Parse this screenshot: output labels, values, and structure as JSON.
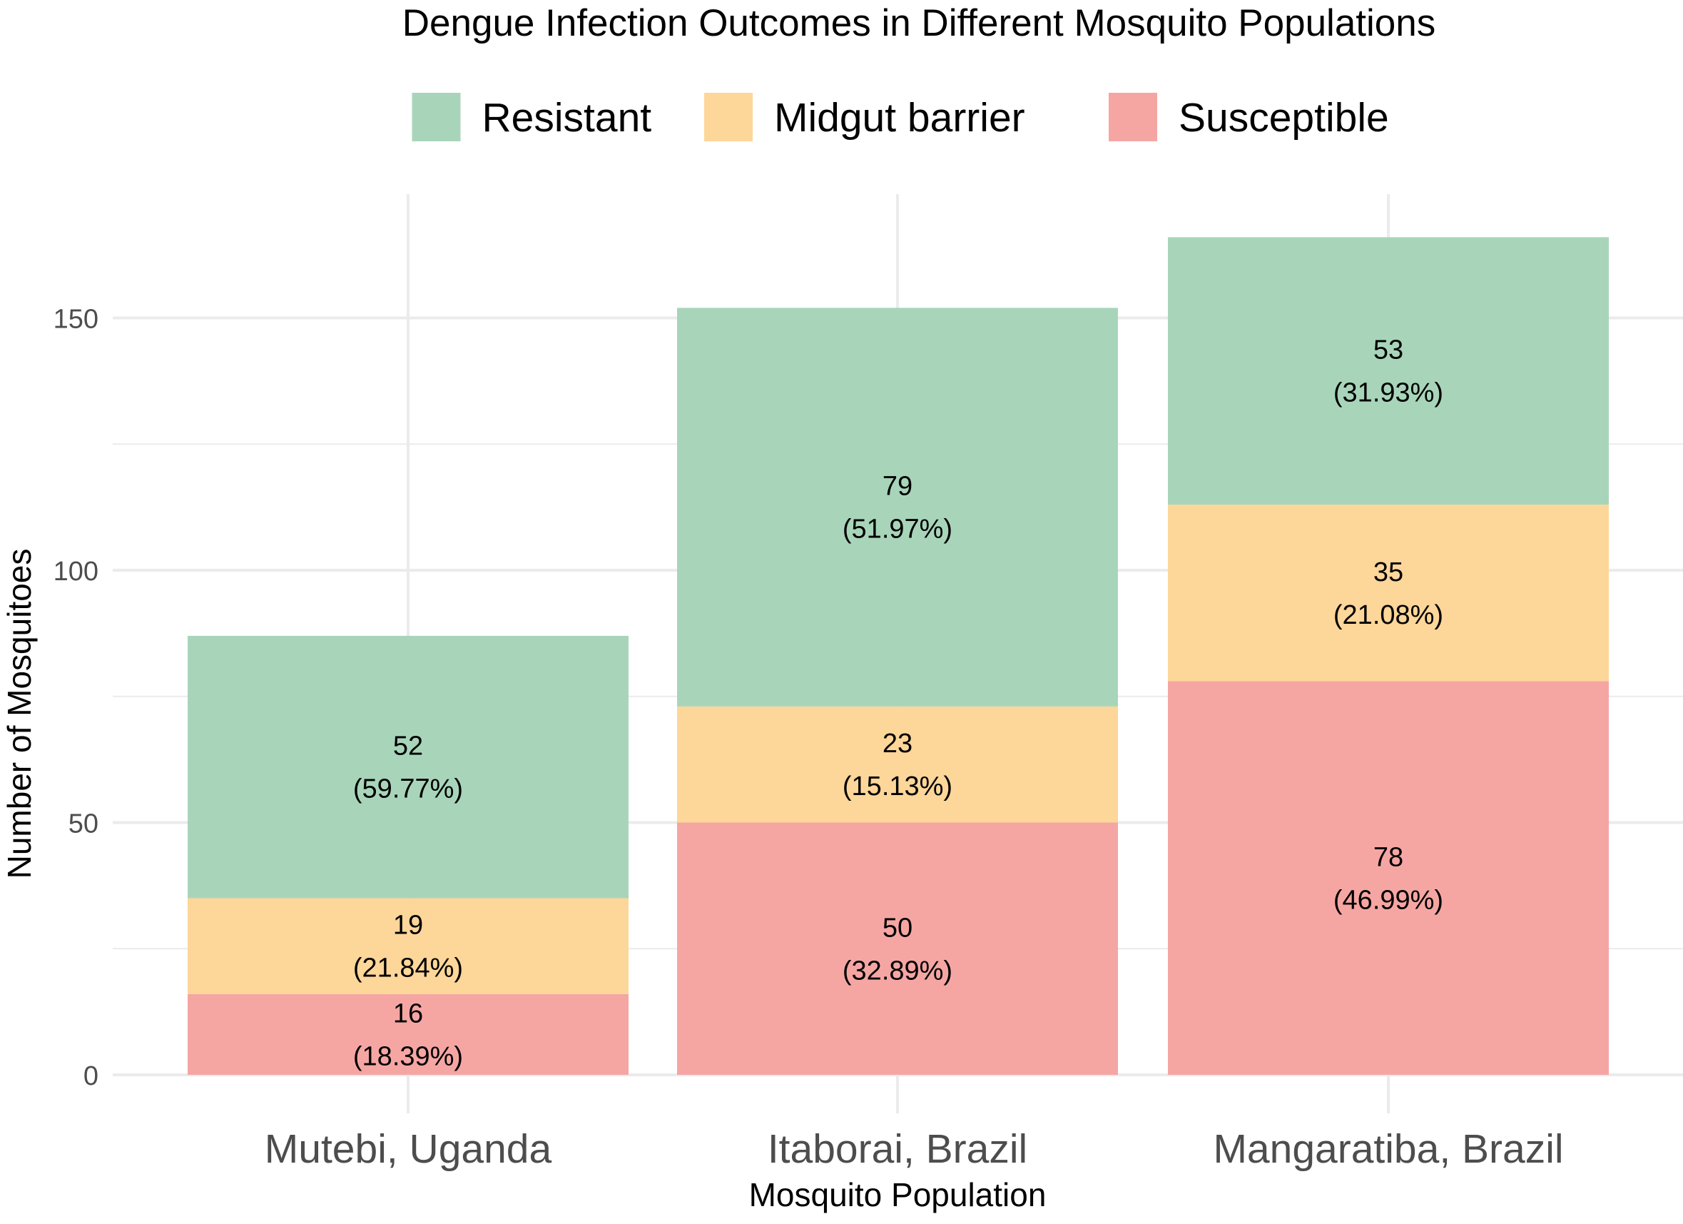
{
  "chart_data": {
    "type": "bar",
    "stacked": true,
    "title": "Dengue Infection Outcomes in Different Mosquito Populations",
    "xlabel": "Mosquito Population",
    "ylabel": "Number of Mosquitoes",
    "ylim": [
      0,
      174
    ],
    "yticks": [
      "0",
      "50",
      "100",
      "150"
    ],
    "grid": true,
    "legend_position": "top",
    "categories": [
      "Mutebi, Uganda",
      "Itaborai, Brazil",
      "Mangaratiba, Brazil"
    ],
    "series": [
      {
        "name": "Susceptible",
        "color": "#F5A6A3",
        "values": [
          16,
          50,
          78
        ],
        "labels": [
          "(18.39%)",
          "(32.89%)",
          "(46.99%)"
        ]
      },
      {
        "name": "Midgut barrier",
        "color": "#FDD699",
        "values": [
          19,
          23,
          35
        ],
        "labels": [
          "(21.84%)",
          "(15.13%)",
          "(21.08%)"
        ]
      },
      {
        "name": "Resistant",
        "color": "#A8D5BA",
        "values": [
          52,
          79,
          53
        ],
        "labels": [
          "(59.77%)",
          "(51.97%)",
          "(31.93%)"
        ]
      }
    ],
    "legend_order": [
      "Resistant",
      "Midgut barrier",
      "Susceptible"
    ]
  }
}
